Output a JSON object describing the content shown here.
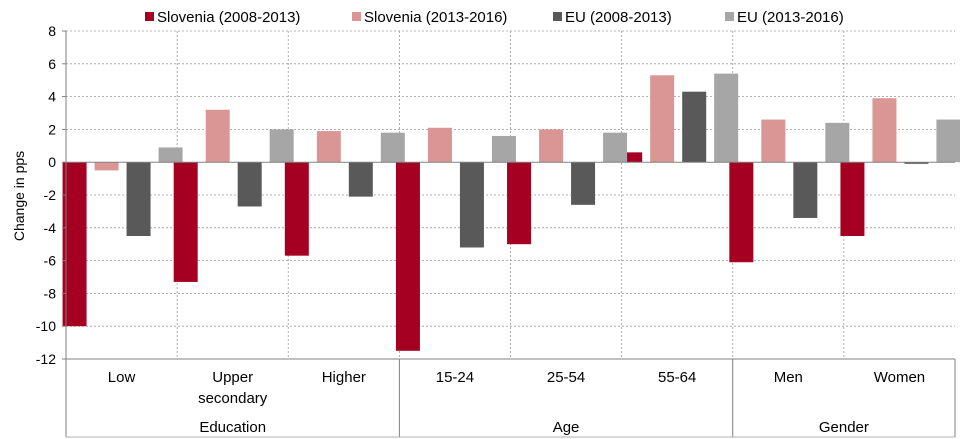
{
  "chart_data": {
    "type": "bar",
    "xlabel": "",
    "ylabel": "Change in pps",
    "ylim": [
      -12,
      8
    ],
    "yticks": [
      8,
      6,
      4,
      2,
      0,
      -2,
      -4,
      -6,
      -8,
      -10,
      -12
    ],
    "grid": true,
    "legend_position": "top",
    "groups": [
      {
        "label": "Education",
        "categories": [
          "Low",
          "Upper secondary",
          "Higher"
        ]
      },
      {
        "label": "Age",
        "categories": [
          "15-24",
          "25-54",
          "55-64"
        ]
      },
      {
        "label": "Gender",
        "categories": [
          "Men",
          "Women"
        ]
      }
    ],
    "category_labels": [
      [
        "Low"
      ],
      [
        "Upper",
        "secondary"
      ],
      [
        "Higher"
      ],
      [
        "15-24"
      ],
      [
        "25-54"
      ],
      [
        "55-64"
      ],
      [
        "Men"
      ],
      [
        "Women"
      ]
    ],
    "series": [
      {
        "name": "Slovenia (2008-2013)",
        "color": "#a50021",
        "values": [
          -10.0,
          -7.3,
          -5.7,
          -11.5,
          -5.0,
          0.6,
          -6.1,
          -4.5
        ]
      },
      {
        "name": "Slovenia (2013-2016)",
        "color": "#d99694",
        "values": [
          -0.5,
          3.2,
          1.9,
          2.1,
          2.0,
          5.3,
          2.6,
          3.9
        ]
      },
      {
        "name": "EU (2008-2013)",
        "color": "#595959",
        "values": [
          -4.5,
          -2.7,
          -2.1,
          -5.2,
          -2.6,
          4.3,
          -3.4,
          -0.1
        ]
      },
      {
        "name": "EU (2013-2016)",
        "color": "#a6a6a6",
        "values": [
          0.9,
          2.0,
          1.8,
          1.6,
          1.8,
          5.4,
          2.4,
          2.6
        ]
      }
    ]
  }
}
